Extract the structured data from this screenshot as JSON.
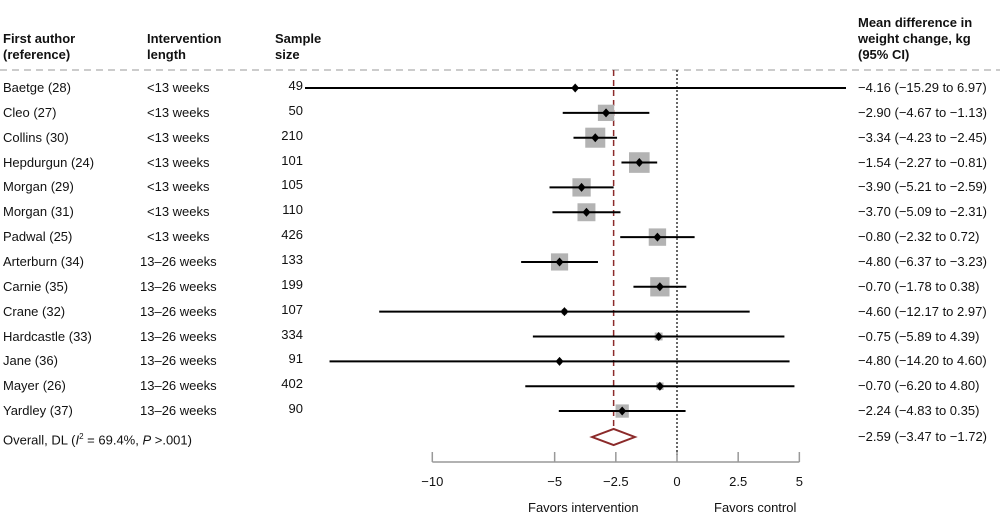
{
  "headers": {
    "author": [
      "First author",
      "(reference)"
    ],
    "intervention": [
      "Intervention",
      "length"
    ],
    "sample": [
      "Sample",
      "size"
    ],
    "effect": [
      "Mean difference in",
      "weight change, kg",
      "(95% CI)"
    ]
  },
  "colors": {
    "point": "#000000",
    "box": "#b3b3b3",
    "overall": "#8b2a2a",
    "axis": "#999999"
  },
  "chart_data": {
    "type": "forest",
    "x_ticks": [
      -10,
      -5,
      -2.5,
      0,
      2.5,
      5
    ],
    "x_tick_labels": [
      "−10",
      "−5",
      "−2.5",
      "0",
      "2.5",
      "5"
    ],
    "xlim": [
      -10,
      5
    ],
    "favors_left": "Favors intervention",
    "favors_right": "Favors control",
    "null_line": 0,
    "studies": [
      {
        "author": "Baetge (28)",
        "length": "<13 weeks",
        "n": "49",
        "md": -4.16,
        "lo": -15.29,
        "hi": 6.97,
        "label": "−4.16 (−15.29 to 6.97)"
      },
      {
        "author": "Cleo (27)",
        "length": "<13 weeks",
        "n": "50",
        "md": -2.9,
        "lo": -4.67,
        "hi": -1.13,
        "label": "−2.90 (−4.67 to −1.13)"
      },
      {
        "author": "Collins (30)",
        "length": "<13 weeks",
        "n": "210",
        "md": -3.34,
        "lo": -4.23,
        "hi": -2.45,
        "label": "−3.34 (−4.23 to −2.45)"
      },
      {
        "author": "Hepdurgun (24)",
        "length": "<13 weeks",
        "n": "101",
        "md": -1.54,
        "lo": -2.27,
        "hi": -0.81,
        "label": "−1.54 (−2.27 to −0.81)"
      },
      {
        "author": "Morgan (29)",
        "length": "<13 weeks",
        "n": "105",
        "md": -3.9,
        "lo": -5.21,
        "hi": -2.59,
        "label": "−3.90 (−5.21 to −2.59)"
      },
      {
        "author": "Morgan (31)",
        "length": "<13 weeks",
        "n": "110",
        "md": -3.7,
        "lo": -5.09,
        "hi": -2.31,
        "label": "−3.70 (−5.09 to −2.31)"
      },
      {
        "author": "Padwal (25)",
        "length": "<13 weeks",
        "n": "426",
        "md": -0.8,
        "lo": -2.32,
        "hi": 0.72,
        "label": "−0.80 (−2.32 to 0.72)"
      },
      {
        "author": "Arterburn (34)",
        "length": "13–26 weeks",
        "n": "133",
        "md": -4.8,
        "lo": -6.37,
        "hi": -3.23,
        "label": "−4.80 (−6.37 to −3.23)"
      },
      {
        "author": "Carnie (35)",
        "length": "13–26 weeks",
        "n": "199",
        "md": -0.7,
        "lo": -1.78,
        "hi": 0.38,
        "label": "−0.70 (−1.78 to 0.38)"
      },
      {
        "author": "Crane (32)",
        "length": "13–26 weeks",
        "n": "107",
        "md": -4.6,
        "lo": -12.17,
        "hi": 2.97,
        "label": "−4.60 (−12.17 to 2.97)"
      },
      {
        "author": "Hardcastle (33)",
        "length": "13–26 weeks",
        "n": "334",
        "md": -0.75,
        "lo": -5.89,
        "hi": 4.39,
        "label": "−0.75 (−5.89 to 4.39)"
      },
      {
        "author": "Jane (36)",
        "length": "13–26 weeks",
        "n": "91",
        "md": -4.8,
        "lo": -14.2,
        "hi": 4.6,
        "label": "−4.80 (−14.20 to 4.60)"
      },
      {
        "author": "Mayer (26)",
        "length": "13–26 weeks",
        "n": "402",
        "md": -0.7,
        "lo": -6.2,
        "hi": 4.8,
        "label": "−0.70 (−6.20 to 4.80)"
      },
      {
        "author": "Yardley (37)",
        "length": "13–26 weeks",
        "n": "90",
        "md": -2.24,
        "lo": -4.83,
        "hi": 0.35,
        "label": "−2.24 (−4.83 to 0.35)"
      }
    ],
    "overall": {
      "label_prefix": "Overall, DL (",
      "i2_symbol": "I",
      "i2_sup": "2",
      "i2_text": " = 69.4%, ",
      "p_symbol": "P",
      "p_text": " >.001)",
      "md": -2.59,
      "lo": -3.47,
      "hi": -1.72,
      "label": "−2.59 (−3.47 to −1.72)"
    }
  }
}
